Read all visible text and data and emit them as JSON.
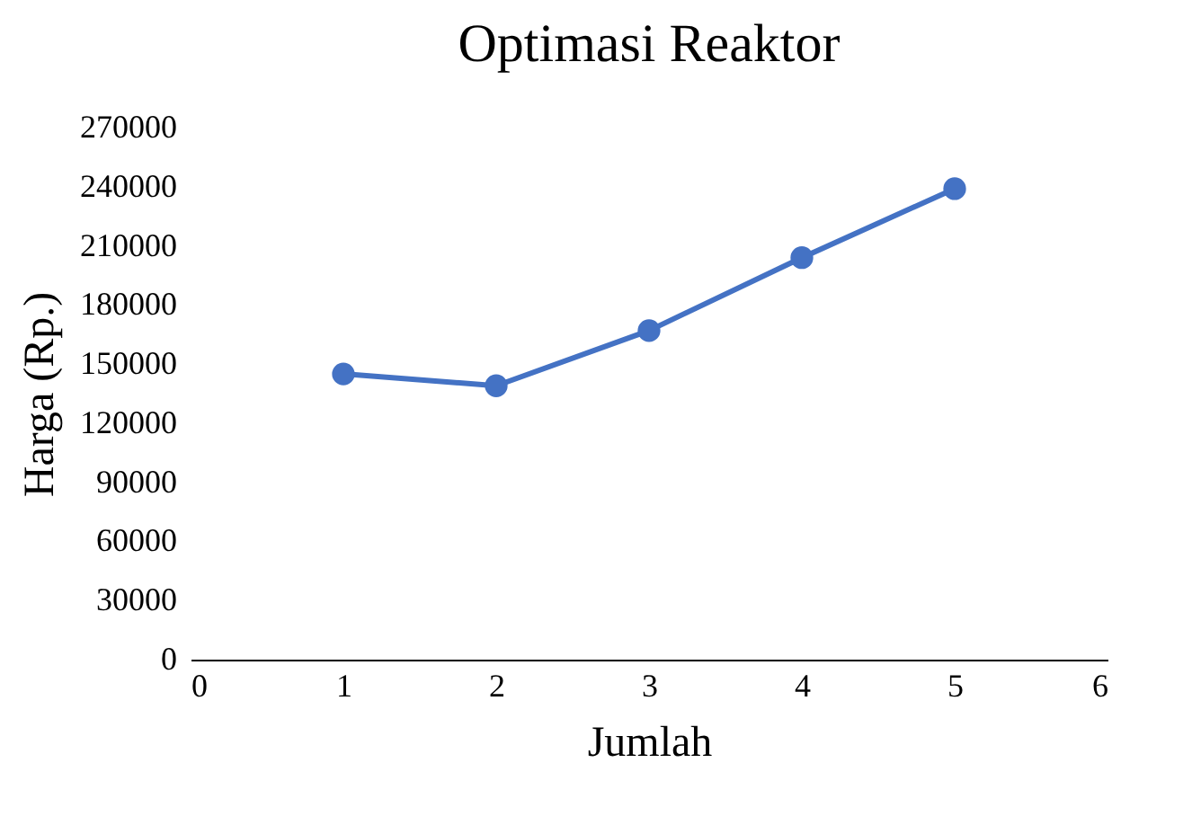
{
  "chart_data": {
    "type": "line",
    "title": "Optimasi Reaktor",
    "xlabel": "Jumlah",
    "ylabel": "Harga (Rp.)",
    "x": [
      1,
      2,
      3,
      4,
      5
    ],
    "series": [
      {
        "color": "#4472c4",
        "values": [
          145000,
          139000,
          167000,
          204000,
          239000
        ]
      }
    ],
    "xlim": [
      0,
      6
    ],
    "xticks": [
      0,
      1,
      2,
      3,
      4,
      5,
      6
    ],
    "ylim": [
      0,
      270000
    ],
    "yticks": [
      0,
      30000,
      60000,
      90000,
      120000,
      150000,
      180000,
      210000,
      240000,
      270000
    ],
    "grid": false,
    "legend": false,
    "marker": "circle",
    "line_style": "solid"
  }
}
